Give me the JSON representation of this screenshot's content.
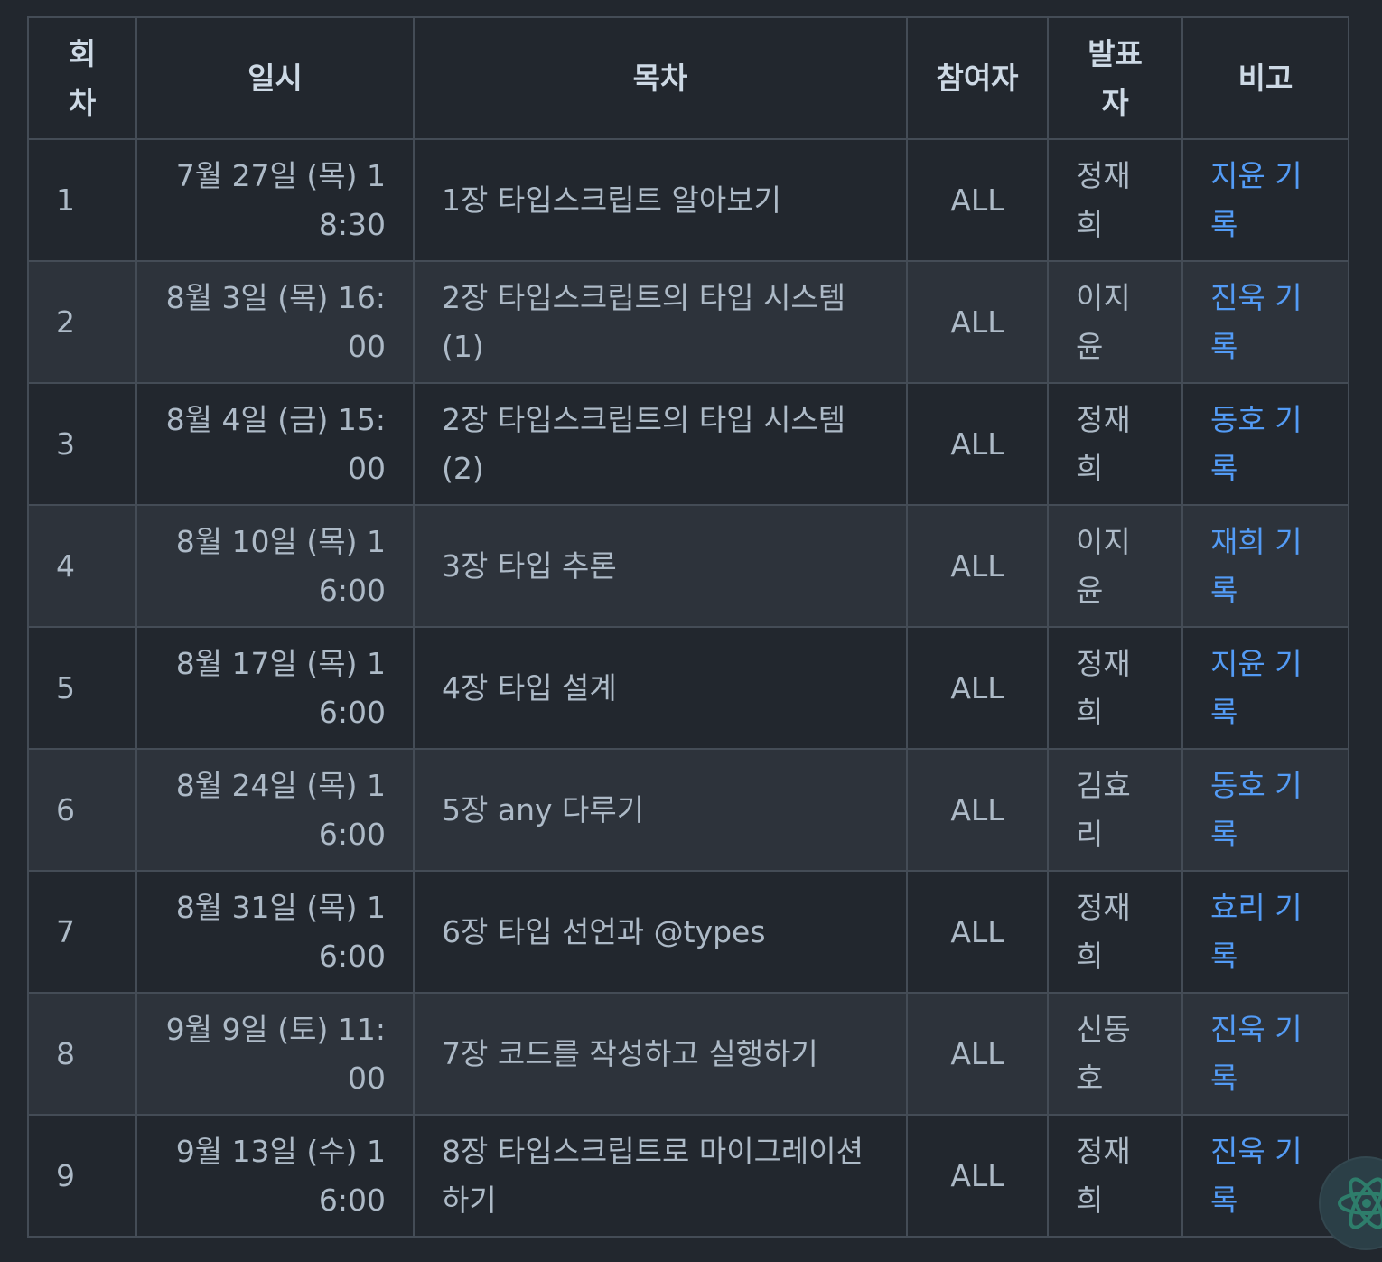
{
  "table": {
    "headers": {
      "round": "회차",
      "date": "일시",
      "toc": "목차",
      "participants": "참여자",
      "presenter": "발표자",
      "note": "비고"
    },
    "rows": [
      {
        "round": "1",
        "date": "7월 27일 (목) 18:30",
        "toc": "1장 타입스크립트 알아보기",
        "participants": "ALL",
        "presenter": "정재희",
        "note": "지윤 기록"
      },
      {
        "round": "2",
        "date": "8월 3일 (목) 16:00",
        "toc": "2장 타입스크립트의 타입 시스템 (1)",
        "participants": "ALL",
        "presenter": "이지윤",
        "note": "진욱 기록"
      },
      {
        "round": "3",
        "date": "8월 4일 (금) 15:00",
        "toc": "2장 타입스크립트의 타입 시스템 (2)",
        "participants": "ALL",
        "presenter": "정재희",
        "note": "동호 기록"
      },
      {
        "round": "4",
        "date": "8월 10일 (목) 16:00",
        "toc": "3장 타입 추론",
        "participants": "ALL",
        "presenter": "이지윤",
        "note": "재희 기록"
      },
      {
        "round": "5",
        "date": "8월 17일 (목) 16:00",
        "toc": "4장 타입 설계",
        "participants": "ALL",
        "presenter": "정재희",
        "note": "지윤 기록"
      },
      {
        "round": "6",
        "date": "8월 24일 (목) 16:00",
        "toc": "5장 any 다루기",
        "participants": "ALL",
        "presenter": "김효리",
        "note": "동호 기록"
      },
      {
        "round": "7",
        "date": "8월 31일 (목) 16:00",
        "toc": "6장 타입 선언과 @types",
        "participants": "ALL",
        "presenter": "정재희",
        "note": "효리 기록"
      },
      {
        "round": "8",
        "date": "9월 9일 (토) 11:00",
        "toc": "7장 코드를 작성하고 실행하기",
        "participants": "ALL",
        "presenter": "신동호",
        "note": "진욱 기록"
      },
      {
        "round": "9",
        "date": "9월 13일 (수) 16:00",
        "toc": "8장 타입스크립트로 마이그레이션하기",
        "participants": "ALL",
        "presenter": "정재희",
        "note": "진욱 기록"
      }
    ]
  },
  "icons": {
    "floating_button": "atom-icon",
    "accent": "#2e7d6b"
  },
  "colors": {
    "background": "#22272e",
    "row_alt": "#2d333b",
    "border": "#444c56",
    "link": "#539bf5"
  }
}
